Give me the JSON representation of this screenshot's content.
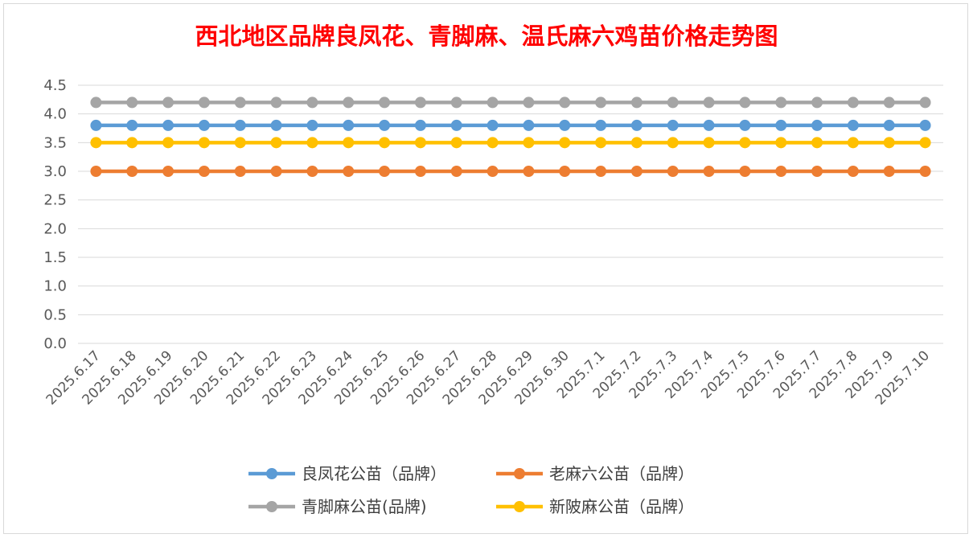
{
  "chart_data": {
    "type": "line",
    "title": "西北地区品牌良凤花、青脚麻、温氏麻六鸡苗价格走势图",
    "xlabel": "",
    "ylabel": "",
    "ylim": [
      0,
      4.5
    ],
    "yticks": [
      "0.0",
      "0.5",
      "1.0",
      "1.5",
      "2.0",
      "2.5",
      "3.0",
      "3.5",
      "4.0",
      "4.5"
    ],
    "grid": true,
    "legend_position": "bottom",
    "categories": [
      "2025.6.17",
      "2025.6.18",
      "2025.6.19",
      "2025.6.20",
      "2025.6.21",
      "2025.6.22",
      "2025.6.23",
      "2025.6.24",
      "2025.6.25",
      "2025.6.26",
      "2025.6.27",
      "2025.6.28",
      "2025.6.29",
      "2025.6.30",
      "2025.7.1",
      "2025.7.2",
      "2025.7.3",
      "2025.7.4",
      "2025.7.5",
      "2025.7.6",
      "2025.7.7",
      "2025.7.8",
      "2025.7.9",
      "2025.7.10"
    ],
    "series": [
      {
        "name": "良凤花公苗（品牌）",
        "color": "#5b9bd5",
        "values": [
          3.8,
          3.8,
          3.8,
          3.8,
          3.8,
          3.8,
          3.8,
          3.8,
          3.8,
          3.8,
          3.8,
          3.8,
          3.8,
          3.8,
          3.8,
          3.8,
          3.8,
          3.8,
          3.8,
          3.8,
          3.8,
          3.8,
          3.8,
          3.8
        ]
      },
      {
        "name": "老麻六公苗（品牌）",
        "color": "#ed7d31",
        "values": [
          3.0,
          3.0,
          3.0,
          3.0,
          3.0,
          3.0,
          3.0,
          3.0,
          3.0,
          3.0,
          3.0,
          3.0,
          3.0,
          3.0,
          3.0,
          3.0,
          3.0,
          3.0,
          3.0,
          3.0,
          3.0,
          3.0,
          3.0,
          3.0
        ]
      },
      {
        "name": "青脚麻公苗(品牌)",
        "color": "#a5a5a5",
        "values": [
          4.2,
          4.2,
          4.2,
          4.2,
          4.2,
          4.2,
          4.2,
          4.2,
          4.2,
          4.2,
          4.2,
          4.2,
          4.2,
          4.2,
          4.2,
          4.2,
          4.2,
          4.2,
          4.2,
          4.2,
          4.2,
          4.2,
          4.2,
          4.2
        ]
      },
      {
        "name": "新陂麻公苗（品牌）",
        "color": "#ffc000",
        "values": [
          3.5,
          3.5,
          3.5,
          3.5,
          3.5,
          3.5,
          3.5,
          3.5,
          3.5,
          3.5,
          3.5,
          3.5,
          3.5,
          3.5,
          3.5,
          3.5,
          3.5,
          3.5,
          3.5,
          3.5,
          3.5,
          3.5,
          3.5,
          3.5
        ]
      }
    ]
  }
}
